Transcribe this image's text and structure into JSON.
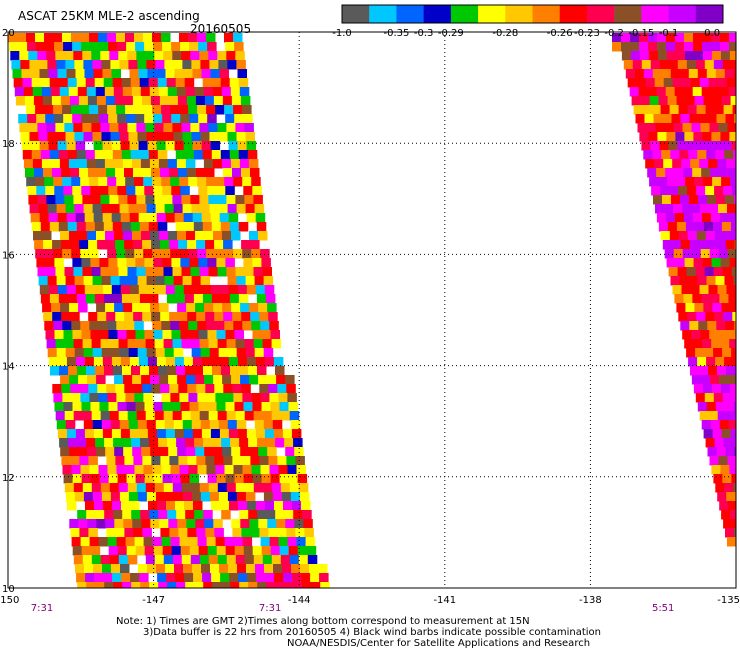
{
  "header": {
    "title": "ASCAT 25KM MLE-2 ascending",
    "date": "20160505"
  },
  "colorbar": {
    "colors": [
      "#5a5a5a",
      "#00c8ff",
      "#0064ff",
      "#0000c8",
      "#00c800",
      "#ffff00",
      "#ffc800",
      "#ff8000",
      "#ff0000",
      "#ff0050",
      "#8c5028",
      "#ff00ff",
      "#c800ff",
      "#8000c8"
    ],
    "labels": [
      "-1.0",
      "-0.35",
      "-0.3",
      "-0.29",
      "-0.28",
      "-0.26",
      "-0.23",
      "-0.2",
      "-0.15",
      "-0.1",
      "0.0"
    ],
    "label_positions": [
      0,
      2,
      3,
      4,
      6,
      8,
      9,
      10,
      11,
      12,
      13
    ]
  },
  "axes": {
    "x_ticks": [
      "-150",
      "-147",
      "-144",
      "-141",
      "-138",
      "-135"
    ],
    "y_ticks": [
      "20",
      "18",
      "16",
      "14",
      "12",
      "10"
    ],
    "xlim": [
      -150,
      -135
    ],
    "ylim": [
      10,
      20
    ]
  },
  "swaths": [
    {
      "time": "7:31",
      "lon_time": -149.3
    },
    {
      "time": "7:31",
      "lon_time": -144.6
    },
    {
      "time": "5:51",
      "lon_time": -136.5
    }
  ],
  "notes": {
    "line1": "Note: 1) Times are GMT 2)Times along bottom correspond to measurement at 15N",
    "line2": "3)Data buffer is 22 hrs from 20160505 4) Black wind barbs indicate possible contamination",
    "line3": "NOAA/NESDIS/Center for Satellite Applications and Research"
  },
  "colors": {
    "time_label": "#800080",
    "grid": "#000000"
  }
}
